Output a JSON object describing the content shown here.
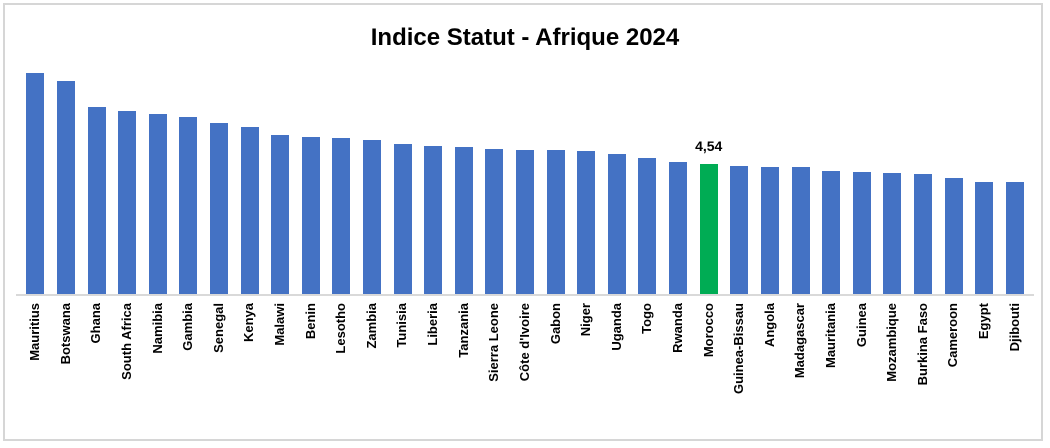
{
  "title": "Indice Statut - Afrique 2024",
  "colors": {
    "bar": "#4472C4",
    "highlight": "#00AC54",
    "axis_line": "#D9D9D9",
    "frame_border": "#D6D6D6",
    "title_text": "#000000",
    "background": "#FFFFFF"
  },
  "chart_data": {
    "type": "bar",
    "title": "Indice Statut - Afrique 2024",
    "categories": [
      "Mauritius",
      "Botswana",
      "Ghana",
      "South Africa",
      "Namibia",
      "Gambia",
      "Senegal",
      "Kenya",
      "Malawi",
      "Benin",
      "Lesotho",
      "Zambia",
      "Tunisia",
      "Liberia",
      "Tanzania",
      "Sierra Leone",
      "Côte d'Ivoire",
      "Gabon",
      "Niger",
      "Uganda",
      "Togo",
      "Rwanda",
      "Morocco",
      "Guinea-Bissau",
      "Angola",
      "Madagascar",
      "Mauritania",
      "Guinea",
      "Mozambique",
      "Burkina Faso",
      "Cameroon",
      "Egypt",
      "Djibouti"
    ],
    "values": [
      7.72,
      7.43,
      6.54,
      6.38,
      6.3,
      6.18,
      5.96,
      5.84,
      5.56,
      5.49,
      5.46,
      5.39,
      5.24,
      5.17,
      5.14,
      5.07,
      5.05,
      5.04,
      5.01,
      4.9,
      4.76,
      4.62,
      4.54,
      4.49,
      4.46,
      4.44,
      4.3,
      4.27,
      4.23,
      4.19,
      4.08,
      3.92,
      3.91
    ],
    "bar_color": "#4472C4",
    "highlight": {
      "category": "Morocco",
      "value": 4.54,
      "data_label": "4,54",
      "color": "#00AC54"
    },
    "xlabel": "",
    "ylabel": "",
    "ylim": [
      0,
      8.2
    ],
    "grid": false,
    "legend": false,
    "x_tick_rotation": 90,
    "data_labels_shown_for": [
      "Morocco"
    ]
  }
}
